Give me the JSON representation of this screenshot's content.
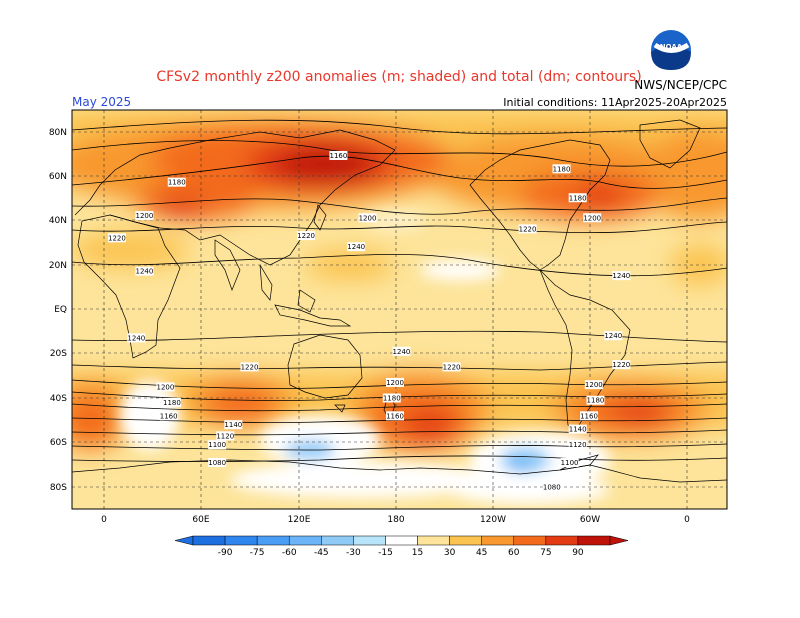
{
  "title": "CFSv2 monthly z200 anomalies (m; shaded) and total (dm; contours)",
  "month_label": "May 2025",
  "init_label": "Initial conditions: 11Apr2025-20Apr2025",
  "agency_label": "NWS/NCEP/CPC",
  "logo_text": "NOAA",
  "lat_labels": [
    "80N",
    "60N",
    "40N",
    "20N",
    "EQ",
    "20S",
    "40S",
    "60S",
    "80S"
  ],
  "lon_labels": [
    "0",
    "60E",
    "120E",
    "180",
    "120W",
    "60W",
    "0"
  ],
  "colorbar": {
    "labels": [
      "-90",
      "-75",
      "-60",
      "-45",
      "-30",
      "-15",
      "15",
      "30",
      "45",
      "60",
      "75",
      "90"
    ],
    "colors": [
      "#1e6fe0",
      "#2f86ef",
      "#4a9df5",
      "#6bb4f7",
      "#8fcaf7",
      "#b8e4fa",
      "#ffffff",
      "#fde49a",
      "#fbc350",
      "#f8982e",
      "#f36a1c",
      "#e23a12",
      "#bf1208"
    ]
  },
  "contour_labels": [
    {
      "text": "1160",
      "lon": 145,
      "lat": 69
    },
    {
      "text": "1180",
      "lon": 45,
      "lat": 57
    },
    {
      "text": "1200",
      "lon": 25,
      "lat": 42
    },
    {
      "text": "1220",
      "lon": 8,
      "lat": 32
    },
    {
      "text": "1240",
      "lon": 25,
      "lat": 17
    },
    {
      "text": "1220",
      "lon": 125,
      "lat": 33
    },
    {
      "text": "1200",
      "lon": 163,
      "lat": 41
    },
    {
      "text": "1240",
      "lon": 156,
      "lat": 28
    },
    {
      "text": "1220",
      "lon": -98,
      "lat": 36
    },
    {
      "text": "1180",
      "lon": -77,
      "lat": 63
    },
    {
      "text": "1180",
      "lon": -67,
      "lat": 50
    },
    {
      "text": "1200",
      "lon": -58,
      "lat": 41
    },
    {
      "text": "1240",
      "lon": -40,
      "lat": 15
    },
    {
      "text": "1240",
      "lon": 20,
      "lat": -13
    },
    {
      "text": "1220",
      "lon": 90,
      "lat": -26
    },
    {
      "text": "1240",
      "lon": -176,
      "lat": -19
    },
    {
      "text": "1220",
      "lon": -145,
      "lat": -26
    },
    {
      "text": "1240",
      "lon": -45,
      "lat": -12
    },
    {
      "text": "1220",
      "lon": -40,
      "lat": -25
    },
    {
      "text": "1200",
      "lon": 38,
      "lat": -35
    },
    {
      "text": "1180",
      "lon": 42,
      "lat": -42
    },
    {
      "text": "1160",
      "lon": 40,
      "lat": -48
    },
    {
      "text": "1140",
      "lon": 80,
      "lat": -52
    },
    {
      "text": "1120",
      "lon": 75,
      "lat": -57
    },
    {
      "text": "1100",
      "lon": 70,
      "lat": -61
    },
    {
      "text": "1080",
      "lon": 70,
      "lat": -69
    },
    {
      "text": "1200",
      "lon": -180,
      "lat": -33
    },
    {
      "text": "1180",
      "lon": -182,
      "lat": -40
    },
    {
      "text": "1160",
      "lon": -180,
      "lat": -48
    },
    {
      "text": "1200",
      "lon": -57,
      "lat": -34
    },
    {
      "text": "1180",
      "lon": -56,
      "lat": -41
    },
    {
      "text": "1160",
      "lon": -60,
      "lat": -48
    },
    {
      "text": "1140",
      "lon": -67,
      "lat": -54
    },
    {
      "text": "1120",
      "lon": -67,
      "lat": -61
    },
    {
      "text": "1100",
      "lon": -72,
      "lat": -69
    },
    {
      "text": "1080",
      "lon": -83,
      "lat": -80
    }
  ]
}
